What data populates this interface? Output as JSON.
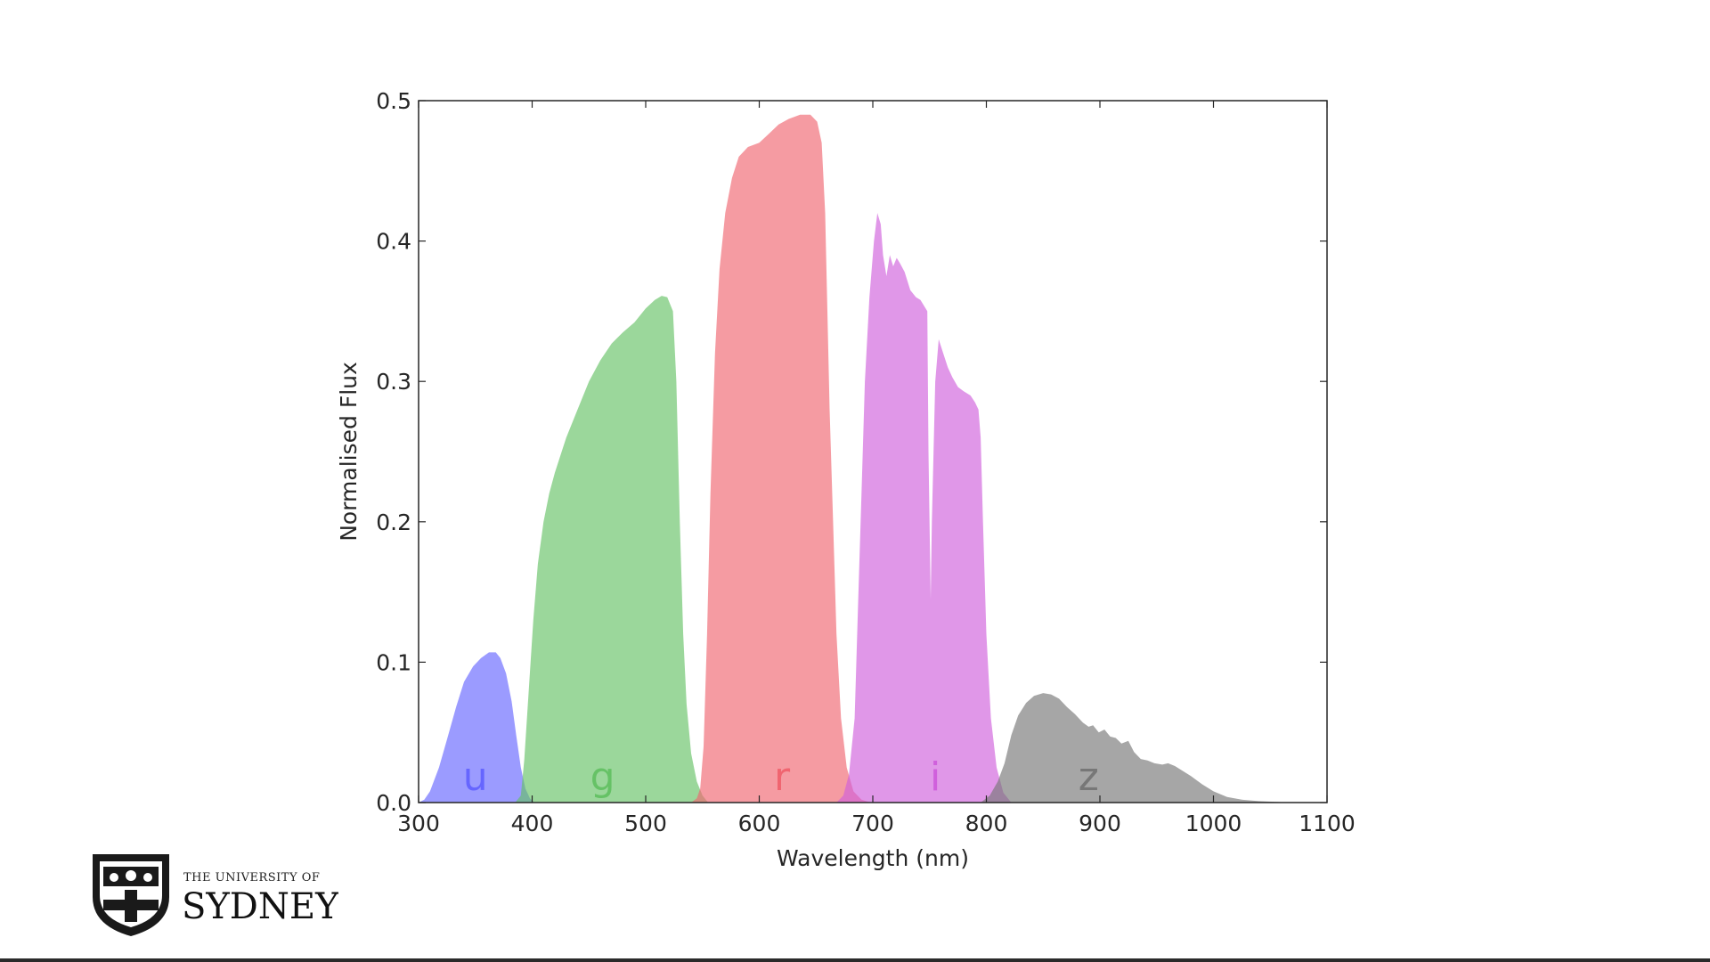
{
  "chart_data": {
    "type": "area",
    "xlabel": "Wavelength (nm)",
    "ylabel": "Normalised Flux",
    "xlim": [
      300,
      1100
    ],
    "ylim": [
      0,
      0.5
    ],
    "xticks": [
      "300",
      "400",
      "500",
      "600",
      "700",
      "800",
      "900",
      "1000",
      "1100"
    ],
    "yticks": [
      "0.0",
      "0.1",
      "0.2",
      "0.3",
      "0.4",
      "0.5"
    ],
    "grid": false,
    "series": [
      {
        "name": "u",
        "color": "#6666ff",
        "points": [
          [
            300,
            0
          ],
          [
            305,
            0.002
          ],
          [
            310,
            0.008
          ],
          [
            318,
            0.025
          ],
          [
            325,
            0.045
          ],
          [
            333,
            0.068
          ],
          [
            340,
            0.086
          ],
          [
            348,
            0.097
          ],
          [
            355,
            0.103
          ],
          [
            362,
            0.107
          ],
          [
            368,
            0.107
          ],
          [
            372,
            0.103
          ],
          [
            377,
            0.092
          ],
          [
            382,
            0.072
          ],
          [
            386,
            0.048
          ],
          [
            390,
            0.025
          ],
          [
            394,
            0.01
          ],
          [
            398,
            0.003
          ],
          [
            402,
            0
          ]
        ],
        "label_x": 350
      },
      {
        "name": "g",
        "color": "#66c266",
        "points": [
          [
            385,
            0
          ],
          [
            390,
            0.005
          ],
          [
            393,
            0.03
          ],
          [
            397,
            0.08
          ],
          [
            401,
            0.13
          ],
          [
            405,
            0.17
          ],
          [
            410,
            0.2
          ],
          [
            415,
            0.22
          ],
          [
            420,
            0.235
          ],
          [
            430,
            0.26
          ],
          [
            440,
            0.28
          ],
          [
            450,
            0.3
          ],
          [
            460,
            0.315
          ],
          [
            470,
            0.327
          ],
          [
            480,
            0.335
          ],
          [
            490,
            0.342
          ],
          [
            500,
            0.352
          ],
          [
            508,
            0.358
          ],
          [
            514,
            0.361
          ],
          [
            519,
            0.36
          ],
          [
            524,
            0.35
          ],
          [
            527,
            0.3
          ],
          [
            530,
            0.2
          ],
          [
            533,
            0.12
          ],
          [
            536,
            0.07
          ],
          [
            540,
            0.035
          ],
          [
            545,
            0.015
          ],
          [
            550,
            0.005
          ],
          [
            555,
            0
          ]
        ],
        "label_x": 462
      },
      {
        "name": "r",
        "color": "#f06570",
        "points": [
          [
            540,
            0
          ],
          [
            545,
            0.003
          ],
          [
            548,
            0.01
          ],
          [
            551,
            0.04
          ],
          [
            554,
            0.12
          ],
          [
            557,
            0.22
          ],
          [
            561,
            0.32
          ],
          [
            565,
            0.38
          ],
          [
            570,
            0.42
          ],
          [
            576,
            0.445
          ],
          [
            582,
            0.46
          ],
          [
            590,
            0.467
          ],
          [
            600,
            0.47
          ],
          [
            608,
            0.476
          ],
          [
            617,
            0.483
          ],
          [
            626,
            0.487
          ],
          [
            636,
            0.49
          ],
          [
            645,
            0.49
          ],
          [
            651,
            0.485
          ],
          [
            655,
            0.47
          ],
          [
            658,
            0.42
          ],
          [
            660,
            0.35
          ],
          [
            662,
            0.28
          ],
          [
            665,
            0.2
          ],
          [
            668,
            0.12
          ],
          [
            672,
            0.06
          ],
          [
            677,
            0.025
          ],
          [
            683,
            0.008
          ],
          [
            690,
            0.002
          ],
          [
            698,
            0
          ]
        ],
        "label_x": 620
      },
      {
        "name": "i",
        "color": "#d060dc",
        "points": [
          [
            668,
            0
          ],
          [
            674,
            0.005
          ],
          [
            679,
            0.02
          ],
          [
            684,
            0.06
          ],
          [
            687,
            0.14
          ],
          [
            690,
            0.22
          ],
          [
            693,
            0.3
          ],
          [
            697,
            0.36
          ],
          [
            701,
            0.4
          ],
          [
            704,
            0.42
          ],
          [
            707,
            0.412
          ],
          [
            709,
            0.39
          ],
          [
            712,
            0.375
          ],
          [
            715,
            0.39
          ],
          [
            718,
            0.382
          ],
          [
            721,
            0.388
          ],
          [
            724,
            0.384
          ],
          [
            728,
            0.378
          ],
          [
            733,
            0.365
          ],
          [
            738,
            0.36
          ],
          [
            742,
            0.358
          ],
          [
            745,
            0.354
          ],
          [
            748,
            0.35
          ],
          [
            749,
            0.25
          ],
          [
            751,
            0.145
          ],
          [
            752,
            0.2
          ],
          [
            755,
            0.3
          ],
          [
            758,
            0.33
          ],
          [
            762,
            0.32
          ],
          [
            766,
            0.31
          ],
          [
            770,
            0.303
          ],
          [
            775,
            0.296
          ],
          [
            780,
            0.293
          ],
          [
            786,
            0.29
          ],
          [
            790,
            0.285
          ],
          [
            793,
            0.28
          ],
          [
            795,
            0.26
          ],
          [
            797,
            0.2
          ],
          [
            800,
            0.12
          ],
          [
            804,
            0.06
          ],
          [
            809,
            0.025
          ],
          [
            815,
            0.007
          ],
          [
            822,
            0
          ]
        ],
        "label_x": 755
      },
      {
        "name": "z",
        "color": "#777777",
        "points": [
          [
            795,
            0
          ],
          [
            803,
            0.005
          ],
          [
            810,
            0.015
          ],
          [
            816,
            0.028
          ],
          [
            822,
            0.048
          ],
          [
            828,
            0.062
          ],
          [
            835,
            0.071
          ],
          [
            842,
            0.076
          ],
          [
            850,
            0.078
          ],
          [
            857,
            0.077
          ],
          [
            864,
            0.074
          ],
          [
            871,
            0.068
          ],
          [
            878,
            0.063
          ],
          [
            885,
            0.057
          ],
          [
            890,
            0.054
          ],
          [
            894,
            0.055
          ],
          [
            899,
            0.05
          ],
          [
            904,
            0.052
          ],
          [
            909,
            0.047
          ],
          [
            914,
            0.046
          ],
          [
            919,
            0.042
          ],
          [
            925,
            0.044
          ],
          [
            930,
            0.036
          ],
          [
            936,
            0.031
          ],
          [
            942,
            0.03
          ],
          [
            948,
            0.028
          ],
          [
            955,
            0.027
          ],
          [
            960,
            0.028
          ],
          [
            966,
            0.026
          ],
          [
            972,
            0.023
          ],
          [
            980,
            0.019
          ],
          [
            990,
            0.013
          ],
          [
            1000,
            0.008
          ],
          [
            1012,
            0.004
          ],
          [
            1025,
            0.002
          ],
          [
            1040,
            0.001
          ],
          [
            1060,
            0.0003
          ],
          [
            1080,
            0
          ]
        ],
        "label_x": 890
      }
    ]
  },
  "branding": {
    "line1": "THE UNIVERSITY OF",
    "line2": "SYDNEY"
  }
}
